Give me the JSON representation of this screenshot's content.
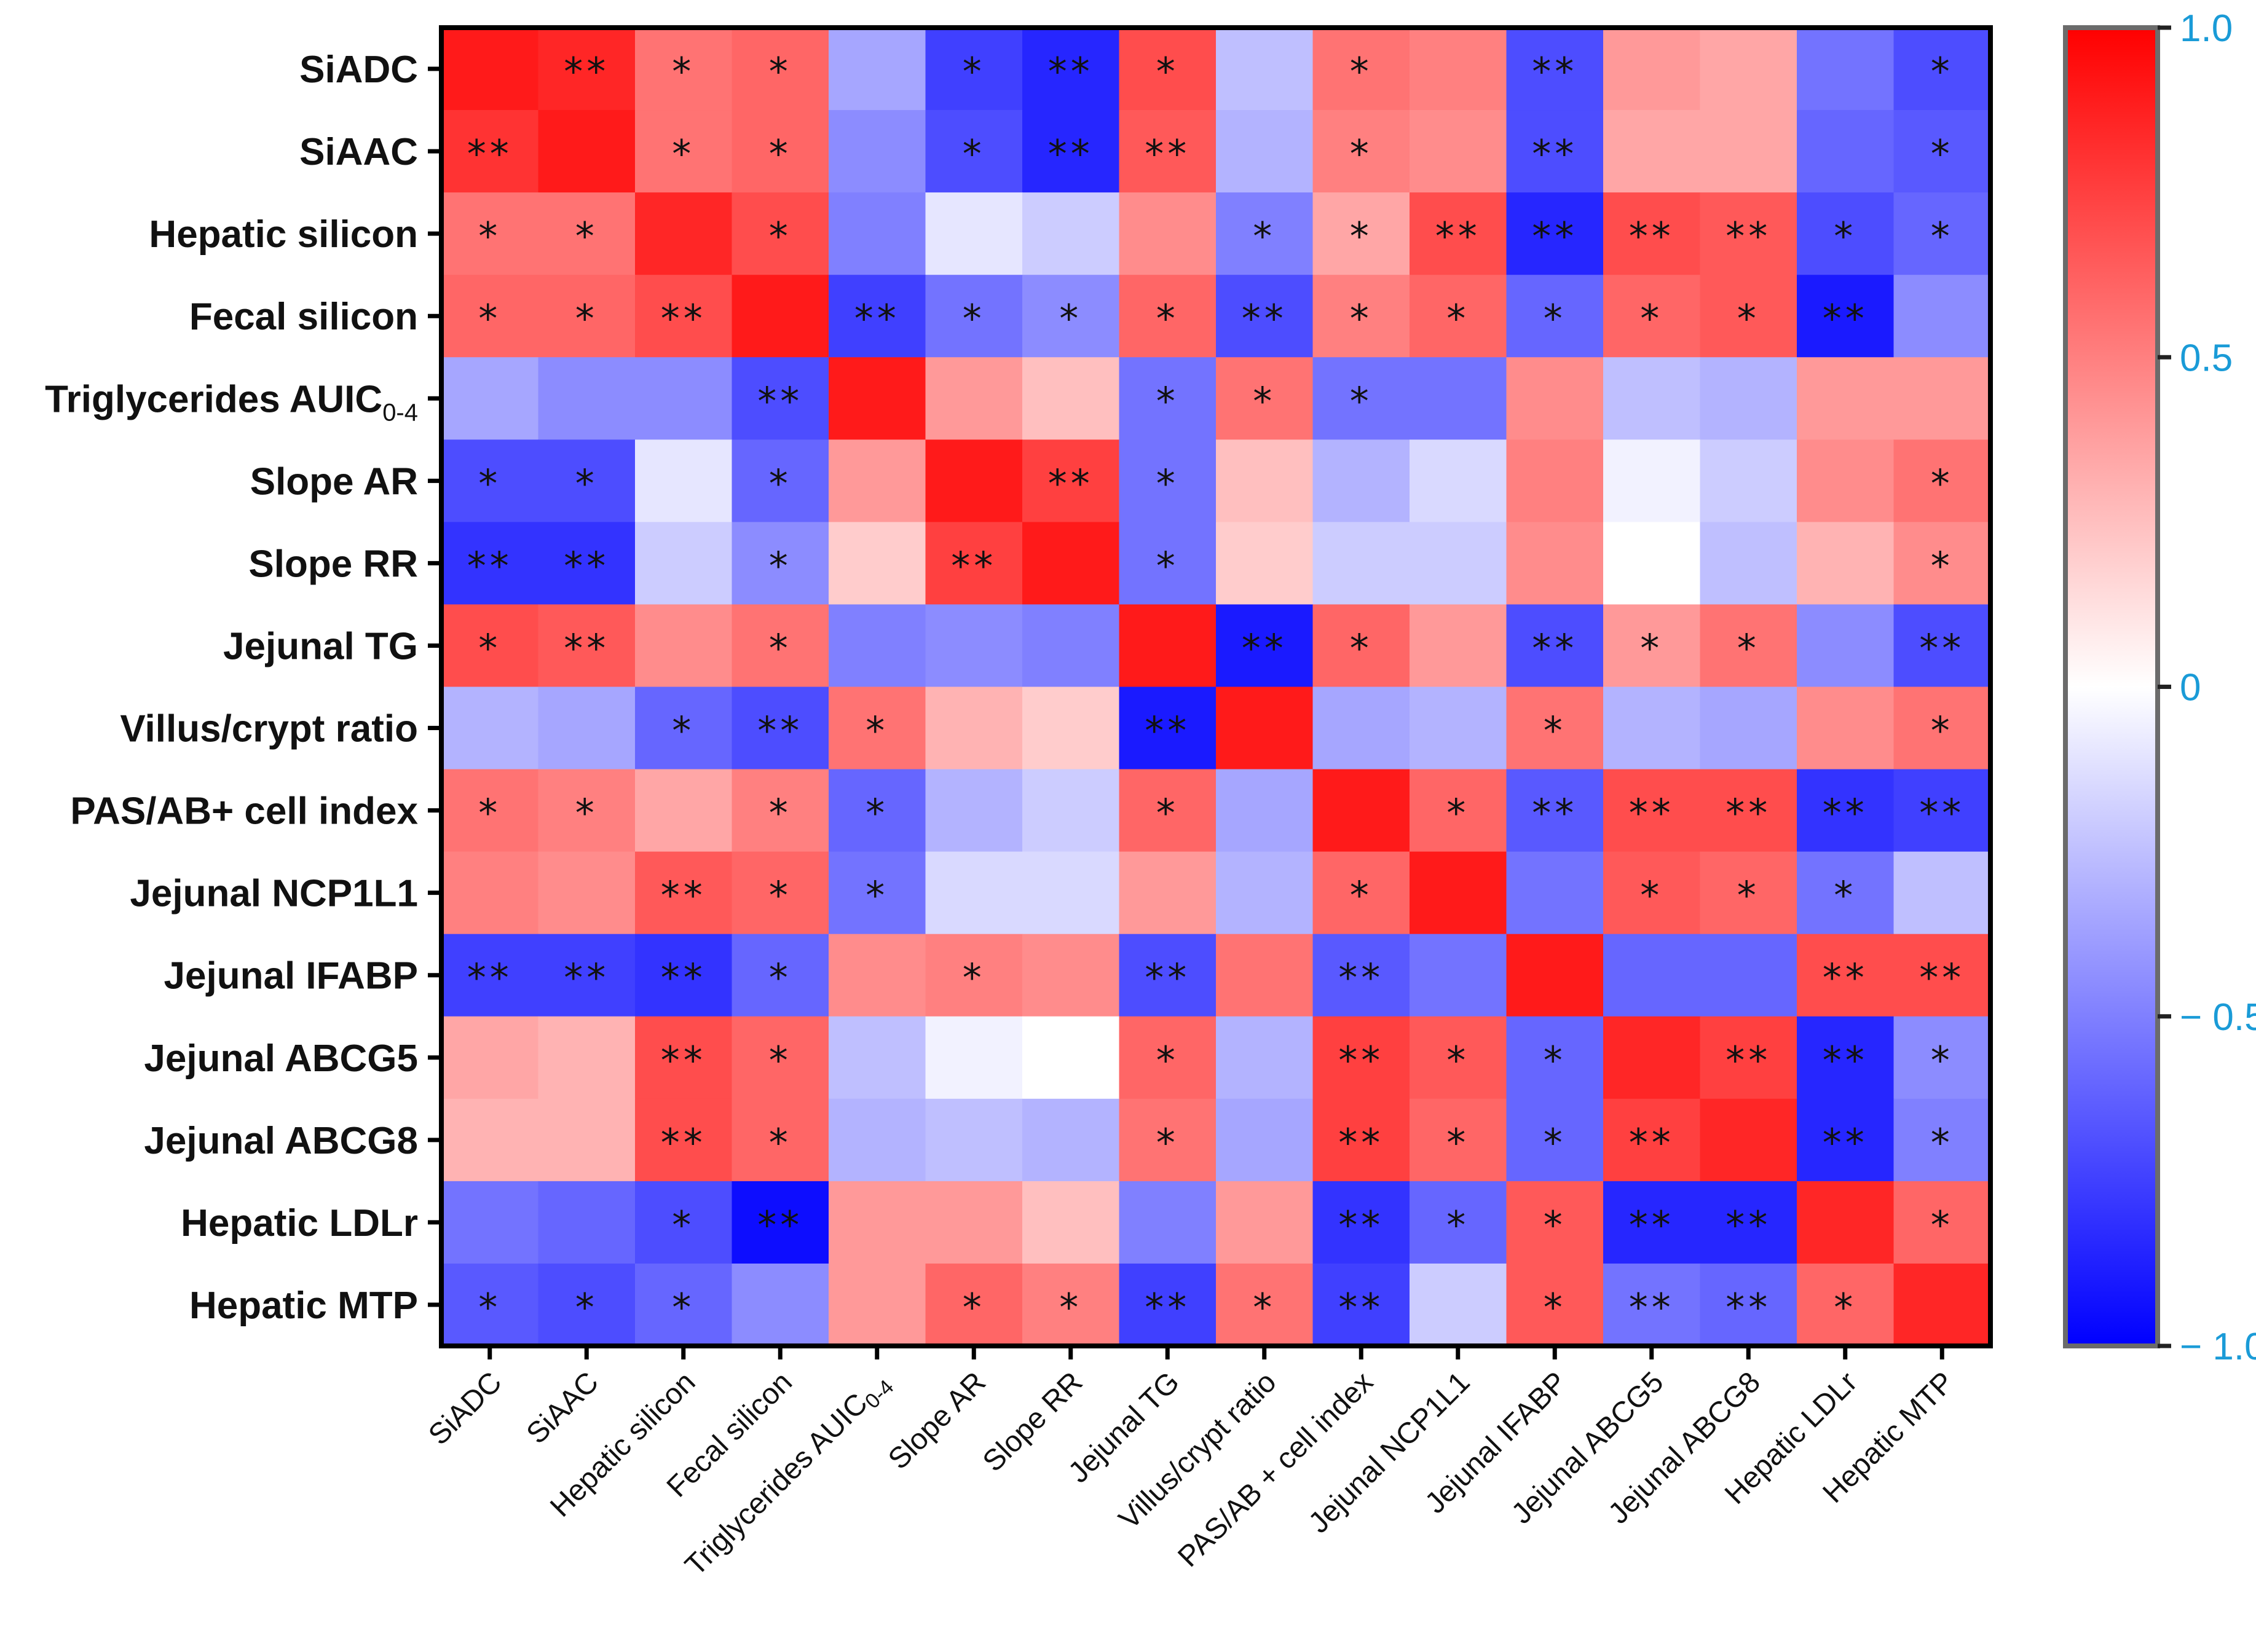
{
  "chart_data": {
    "type": "heatmap",
    "title": "",
    "colormap": {
      "low": "#0000ff",
      "mid": "#ffffff",
      "high": "#ff0000"
    },
    "value_range": [
      -1,
      1
    ],
    "colorbar": {
      "ticks": [
        1,
        0.5,
        0,
        -0.5,
        -1
      ],
      "tick_labels": [
        "1.0",
        "0.5",
        "0",
        "− 0.5",
        "− 1.0"
      ],
      "tick_color": "#1a9bd7"
    },
    "row_labels": [
      "SiADC",
      "SiAAC",
      "Hepatic silicon",
      "Fecal silicon",
      "Triglycerides AUIC",
      "Slope AR",
      "Slope RR",
      "Jejunal TG",
      "Villus/crypt ratio",
      "PAS/AB+ cell index",
      "Jejunal NCP1L1",
      "Jejunal IFABP",
      "Jejunal ABCG5",
      "Jejunal ABCG8",
      "Hepatic LDLr",
      "Hepatic MTP"
    ],
    "row_label_subscripts": [
      "",
      "",
      "",
      "",
      "0-4",
      "",
      "",
      "",
      "",
      "",
      "",
      "",
      "",
      "",
      "",
      ""
    ],
    "col_labels": [
      "SiADC",
      "SiAAC",
      "Hepatic silicon",
      "Fecal silicon",
      "Triglycerides AUIC",
      "Slope AR",
      "Slope RR",
      "Jejunal TG",
      "Villus/crypt ratio",
      "PAS/AB + cell index",
      "Jejunal NCP1L1",
      "Jejunal IFABP",
      "Jejunal ABCG5",
      "Jejunal ABCG8",
      "Hepatic LDLr",
      "Hepatic MTP"
    ],
    "col_label_subscripts": [
      "",
      "",
      "",
      "",
      "0-4",
      "",
      "",
      "",
      "",
      "",
      "",
      "",
      "",
      "",
      "",
      ""
    ],
    "values": [
      [
        0.9,
        0.85,
        0.55,
        0.6,
        -0.35,
        -0.75,
        -0.85,
        0.7,
        -0.25,
        0.55,
        0.5,
        -0.7,
        0.4,
        0.35,
        -0.55,
        -0.7
      ],
      [
        0.8,
        0.9,
        0.55,
        0.6,
        -0.45,
        -0.7,
        -0.85,
        0.65,
        -0.3,
        0.5,
        0.45,
        -0.7,
        0.35,
        0.35,
        -0.6,
        -0.65
      ],
      [
        0.55,
        0.55,
        0.85,
        0.7,
        -0.5,
        -0.1,
        -0.2,
        0.45,
        -0.5,
        0.35,
        0.7,
        -0.85,
        0.7,
        0.65,
        -0.7,
        -0.6
      ],
      [
        0.6,
        0.6,
        0.7,
        0.9,
        -0.75,
        -0.55,
        -0.45,
        0.6,
        -0.7,
        0.5,
        0.6,
        -0.6,
        0.6,
        0.65,
        -0.9,
        -0.45
      ],
      [
        -0.35,
        -0.45,
        -0.45,
        -0.7,
        0.9,
        0.4,
        0.25,
        -0.55,
        0.55,
        -0.55,
        -0.55,
        0.45,
        -0.25,
        -0.3,
        0.4,
        0.4
      ],
      [
        -0.7,
        -0.7,
        -0.1,
        -0.6,
        0.4,
        0.9,
        0.75,
        -0.55,
        0.25,
        -0.3,
        -0.15,
        0.5,
        -0.05,
        -0.2,
        0.45,
        0.55
      ],
      [
        -0.8,
        -0.8,
        -0.2,
        -0.45,
        0.2,
        0.75,
        0.9,
        -0.55,
        0.2,
        -0.2,
        -0.2,
        0.45,
        0.0,
        -0.25,
        0.3,
        0.45
      ],
      [
        0.7,
        0.65,
        0.45,
        0.55,
        -0.5,
        -0.45,
        -0.5,
        0.9,
        -0.9,
        0.6,
        0.4,
        -0.7,
        0.4,
        0.55,
        -0.45,
        -0.7
      ],
      [
        -0.3,
        -0.35,
        -0.6,
        -0.7,
        0.55,
        0.3,
        0.2,
        -0.9,
        0.9,
        -0.35,
        -0.3,
        0.55,
        -0.3,
        -0.35,
        0.45,
        0.55
      ],
      [
        0.55,
        0.5,
        0.35,
        0.5,
        -0.6,
        -0.3,
        -0.2,
        0.6,
        -0.35,
        0.9,
        0.6,
        -0.65,
        0.7,
        0.7,
        -0.8,
        -0.75
      ],
      [
        0.5,
        0.45,
        0.65,
        0.6,
        -0.55,
        -0.15,
        -0.15,
        0.4,
        -0.3,
        0.6,
        0.9,
        -0.55,
        0.65,
        0.6,
        -0.55,
        -0.25
      ],
      [
        -0.75,
        -0.75,
        -0.8,
        -0.6,
        0.45,
        0.5,
        0.45,
        -0.7,
        0.55,
        -0.65,
        -0.55,
        0.9,
        -0.6,
        -0.6,
        0.7,
        0.7
      ],
      [
        0.35,
        0.3,
        0.7,
        0.6,
        -0.25,
        -0.05,
        0.0,
        0.6,
        -0.3,
        0.75,
        0.65,
        -0.6,
        0.85,
        0.75,
        -0.85,
        -0.45
      ],
      [
        0.3,
        0.3,
        0.7,
        0.6,
        -0.3,
        -0.25,
        -0.3,
        0.55,
        -0.35,
        0.75,
        0.6,
        -0.6,
        0.75,
        0.85,
        -0.85,
        -0.5
      ],
      [
        -0.55,
        -0.6,
        -0.7,
        -0.95,
        0.4,
        0.4,
        0.25,
        -0.5,
        0.4,
        -0.8,
        -0.6,
        0.65,
        -0.85,
        -0.85,
        0.85,
        0.6
      ],
      [
        -0.65,
        -0.7,
        -0.6,
        -0.45,
        0.4,
        0.6,
        0.5,
        -0.75,
        0.55,
        -0.75,
        -0.2,
        0.65,
        -0.55,
        -0.6,
        0.6,
        0.85
      ]
    ],
    "significance": [
      [
        "",
        "**",
        "*",
        "*",
        "",
        "*",
        "**",
        "*",
        "",
        "*",
        "",
        "**",
        "",
        "",
        "",
        "*"
      ],
      [
        "**",
        "",
        "*",
        "*",
        "",
        "*",
        "**",
        "**",
        "",
        "*",
        "",
        "**",
        "",
        "",
        "",
        "*"
      ],
      [
        "*",
        "*",
        "",
        "*",
        "",
        "",
        "",
        "",
        "*",
        "*",
        "**",
        "**",
        "**",
        "**",
        "*",
        "*"
      ],
      [
        "*",
        "*",
        "**",
        "",
        "**",
        "*",
        "*",
        "*",
        "**",
        "*",
        "*",
        "*",
        "*",
        "*",
        "**",
        ""
      ],
      [
        "",
        "",
        "",
        "**",
        "",
        "",
        "",
        "*",
        "*",
        "*",
        "",
        "",
        "",
        "",
        "",
        ""
      ],
      [
        "*",
        "*",
        "",
        "*",
        "",
        "",
        "**",
        "*",
        "",
        "",
        "",
        "",
        "",
        "",
        "",
        "*"
      ],
      [
        "**",
        "**",
        "",
        "*",
        "",
        "**",
        "",
        "*",
        "",
        "",
        "",
        "",
        "",
        "",
        "",
        "*"
      ],
      [
        "*",
        "**",
        "",
        "*",
        "",
        "",
        "",
        "",
        "**",
        "*",
        "",
        "**",
        "*",
        "*",
        "",
        "**"
      ],
      [
        "",
        "",
        "*",
        "**",
        "*",
        "",
        "",
        "**",
        "",
        "",
        "",
        "*",
        "",
        "",
        "",
        "*"
      ],
      [
        "*",
        "*",
        "",
        "*",
        "*",
        "",
        "",
        "*",
        "",
        "",
        "*",
        "**",
        "**",
        "**",
        "**",
        "**"
      ],
      [
        "",
        "",
        "**",
        "*",
        "*",
        "",
        "",
        "",
        "",
        "*",
        "",
        "",
        "*",
        "*",
        "*",
        ""
      ],
      [
        "**",
        "**",
        "**",
        "*",
        "",
        "*",
        "",
        "**",
        "",
        "**",
        "",
        "",
        "",
        "",
        "**",
        "**"
      ],
      [
        "",
        "",
        "**",
        "*",
        "",
        "",
        "",
        "*",
        "",
        "**",
        "*",
        "*",
        "",
        "**",
        "**",
        "*"
      ],
      [
        "",
        "",
        "**",
        "*",
        "",
        "",
        "",
        "*",
        "",
        "**",
        "*",
        "*",
        "**",
        "",
        "**",
        "*"
      ],
      [
        "",
        "",
        "*",
        "**",
        "",
        "",
        "",
        "",
        "",
        "**",
        "*",
        "*",
        "**",
        "**",
        "",
        "*"
      ],
      [
        "*",
        "*",
        "*",
        "",
        "",
        "*",
        "*",
        "**",
        "*",
        "**",
        "",
        "*",
        "**",
        "**",
        "*",
        ""
      ]
    ]
  }
}
